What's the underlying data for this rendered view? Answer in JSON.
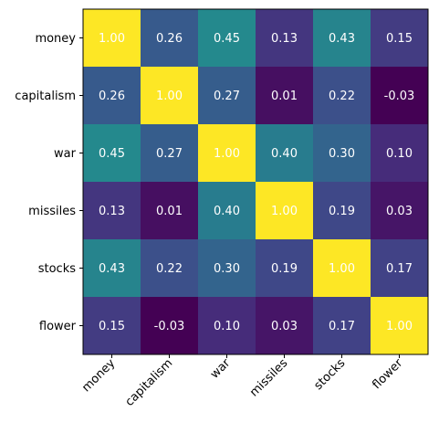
{
  "chart_data": {
    "type": "heatmap",
    "title": "",
    "xlabel": "",
    "ylabel": "",
    "row_labels": [
      "money",
      "capitalism",
      "war",
      "missiles",
      "stocks",
      "flower"
    ],
    "col_labels": [
      "money",
      "capitalism",
      "war",
      "missiles",
      "stocks",
      "flower"
    ],
    "values": [
      [
        1.0,
        0.26,
        0.45,
        0.13,
        0.43,
        0.15
      ],
      [
        0.26,
        1.0,
        0.27,
        0.01,
        0.22,
        -0.03
      ],
      [
        0.45,
        0.27,
        1.0,
        0.4,
        0.3,
        0.1
      ],
      [
        0.13,
        0.01,
        0.4,
        1.0,
        0.19,
        0.03
      ],
      [
        0.43,
        0.22,
        0.3,
        0.19,
        1.0,
        0.17
      ],
      [
        0.15,
        -0.03,
        0.1,
        0.03,
        0.17,
        1.0
      ]
    ],
    "colormap": "viridis",
    "value_format": "2 decimals",
    "annotation_text_color": "#ffffff",
    "x_tick_rotation_deg": 45,
    "grid": false,
    "legend": "none"
  }
}
